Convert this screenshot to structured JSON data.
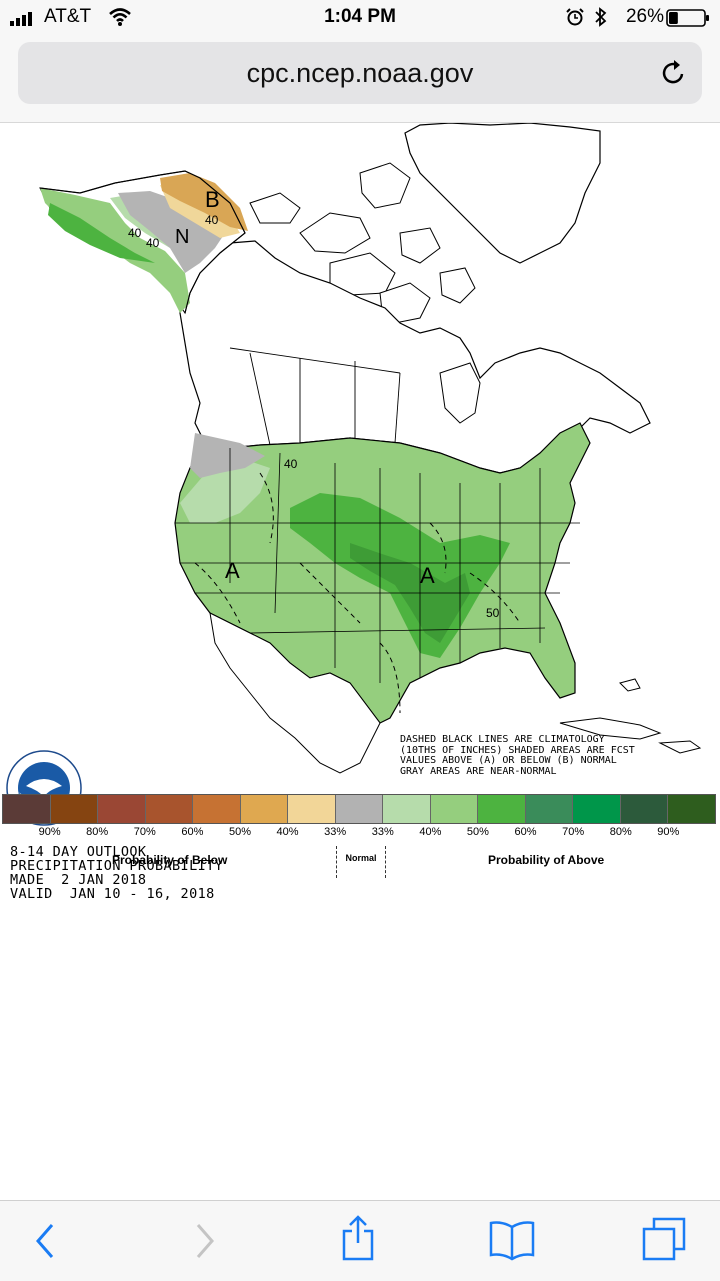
{
  "status_bar": {
    "carrier": "AT&T",
    "time": "1:04 PM",
    "battery_percent": "26%",
    "battery_level": 0.26,
    "icons": [
      "signal-icon",
      "wifi-icon",
      "alarm-icon",
      "bluetooth-icon",
      "battery-icon"
    ]
  },
  "browser": {
    "url": "cpc.ncep.noaa.gov",
    "toolbar_icons": [
      "back-icon",
      "forward-icon",
      "share-icon",
      "bookmarks-icon",
      "tabs-icon"
    ]
  },
  "map": {
    "labels": {
      "b_alaska": "B",
      "b_value": "40",
      "n_alaska": "N",
      "a_alaska_1": "40",
      "a_alaska_2": "40",
      "a_west": "A",
      "a_central": "A",
      "contour_40": "40",
      "contour_50": "50"
    },
    "colors": {
      "below_40": "#d9a655",
      "below_33": "#f0d79a",
      "normal": "#b4b4b4",
      "above_33": "#b6dcab",
      "above_40": "#95ce7e",
      "above_50": "#4db340"
    }
  },
  "caption": {
    "line1": "8-14 DAY OUTLOOK",
    "line2": "PRECIPITATION PROBABILITY",
    "line3": "MADE  2 JAN 2018",
    "line4": "VALID  JAN 10 - 16, 2018"
  },
  "legend_note": {
    "line1": "DASHED BLACK LINES ARE CLIMATOLOGY",
    "line2": "(10THS OF INCHES) SHADED AREAS ARE FCST",
    "line3": "VALUES ABOVE (A) OR BELOW (B) NORMAL",
    "line4": "GRAY AREAS ARE NEAR-NORMAL"
  },
  "scale": {
    "colors": [
      "#5b3b37",
      "#854411",
      "#9a4734",
      "#a8542d",
      "#c67233",
      "#dfa850",
      "#f2d698",
      "#b2b2b2",
      "#b6dcab",
      "#95ce7e",
      "#4db340",
      "#3a8c5a",
      "#00964a",
      "#2c5a3b",
      "#2e5d1e"
    ],
    "labels": [
      "90%",
      "80%",
      "70%",
      "60%",
      "50%",
      "40%",
      "33%",
      "33%",
      "40%",
      "50%",
      "60%",
      "70%",
      "80%",
      "90%"
    ],
    "below_label": "Probability of Below",
    "normal_label": "Normal",
    "above_label": "Probability of Above"
  }
}
